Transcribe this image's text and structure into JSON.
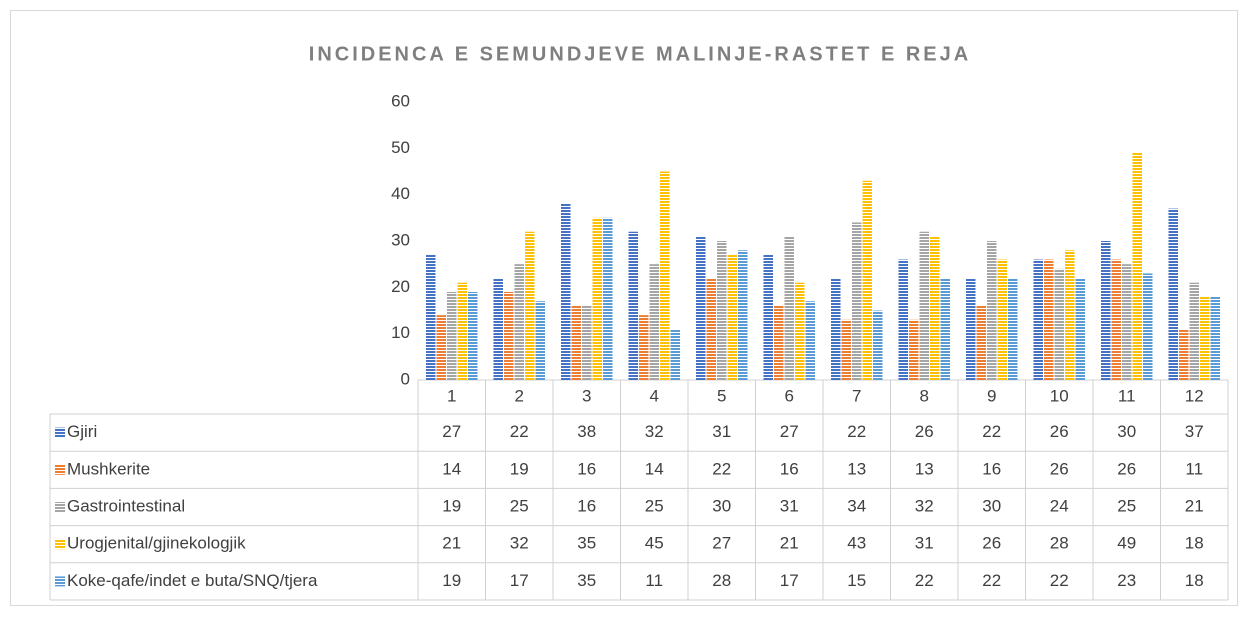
{
  "chart_data": {
    "type": "bar",
    "title": "INCIDENCA E SEMUNDJEVE MALINJE-RASTET E REJA",
    "categories": [
      "1",
      "2",
      "3",
      "4",
      "5",
      "6",
      "7",
      "8",
      "9",
      "10",
      "11",
      "12"
    ],
    "series": [
      {
        "name": "Gjiri",
        "color": "#4472c4",
        "values": [
          27,
          22,
          38,
          32,
          31,
          27,
          22,
          26,
          22,
          26,
          30,
          37
        ]
      },
      {
        "name": "Mushkerite",
        "color": "#ed7d31",
        "values": [
          14,
          19,
          16,
          14,
          22,
          16,
          13,
          13,
          16,
          26,
          26,
          11
        ]
      },
      {
        "name": "Gastrointestinal",
        "color": "#a5a5a5",
        "values": [
          19,
          25,
          16,
          25,
          30,
          31,
          34,
          32,
          30,
          24,
          25,
          21
        ]
      },
      {
        "name": "Urogjenital/gjinekologjik",
        "color": "#ffc000",
        "values": [
          21,
          32,
          35,
          45,
          27,
          21,
          43,
          31,
          26,
          28,
          49,
          18
        ]
      },
      {
        "name": "Koke-qafe/indet e buta/SNQ/tjera",
        "color": "#5b9bd5",
        "values": [
          19,
          17,
          35,
          11,
          28,
          17,
          15,
          22,
          22,
          22,
          23,
          18
        ]
      }
    ],
    "ylim": [
      0,
      60
    ],
    "yticks": [
      0,
      10,
      20,
      30,
      40,
      50,
      60
    ],
    "grid": false
  }
}
